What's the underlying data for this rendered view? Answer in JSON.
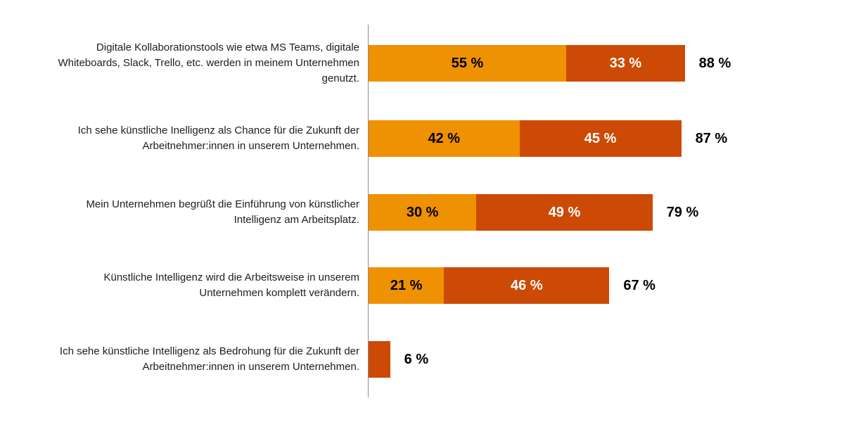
{
  "page": {
    "background": "#ffffff"
  },
  "chart_data": {
    "type": "bar",
    "orientation": "horizontal",
    "stacked": true,
    "unit": "%",
    "xlim": [
      0,
      100
    ],
    "grid": false,
    "legend": "none",
    "title": "",
    "xlabel": "",
    "ylabel": "",
    "colors": {
      "segment_light": "#EE9102",
      "segment_dark": "#CC4A05",
      "axis_line": "#8C8C8C",
      "row_label_text": "#1D1D1B",
      "value_text_on_light": "#000000",
      "value_text_on_dark": "#FFFFFF",
      "total_text": "#000000"
    },
    "rows": [
      {
        "label": "Digitale Kollaborationstools wie etwa MS Teams, digitale Whiteboards, Slack, Trello, etc. werden in meinem Unternehmen genutzt.",
        "segments": [
          {
            "value": 55,
            "display": "55 %",
            "color": "segment_light"
          },
          {
            "value": 33,
            "display": "33 %",
            "color": "segment_dark"
          }
        ],
        "total": 88,
        "total_display": "88 %"
      },
      {
        "label": "Ich sehe künstliche Inelligenz als Chance für die Zukunft der Arbeitnehmer:innen in unserem Unternehmen.",
        "segments": [
          {
            "value": 42,
            "display": "42 %",
            "color": "segment_light"
          },
          {
            "value": 45,
            "display": "45 %",
            "color": "segment_dark"
          }
        ],
        "total": 87,
        "total_display": "87 %"
      },
      {
        "label": "Mein Unternehmen begrüßt die Einführung von künstlicher Intelligenz am Arbeitsplatz.",
        "segments": [
          {
            "value": 30,
            "display": "30 %",
            "color": "segment_light"
          },
          {
            "value": 49,
            "display": "49 %",
            "color": "segment_dark"
          }
        ],
        "total": 79,
        "total_display": "79 %"
      },
      {
        "label": "Künstliche Intelligenz wird die Arbeitsweise in unserem Unternehmen komplett verändern.",
        "segments": [
          {
            "value": 21,
            "display": "21 %",
            "color": "segment_light"
          },
          {
            "value": 46,
            "display": "46 %",
            "color": "segment_dark"
          }
        ],
        "total": 67,
        "total_display": "67 %"
      },
      {
        "label": "Ich sehe künstliche Intelligenz als Bedrohung für die Zukunft der Arbeitnehmer:innen in unserem Unternehmen.",
        "segments": [
          {
            "value": 6,
            "display": "",
            "color": "segment_dark"
          }
        ],
        "total": 6,
        "total_display": "6 %"
      }
    ]
  }
}
